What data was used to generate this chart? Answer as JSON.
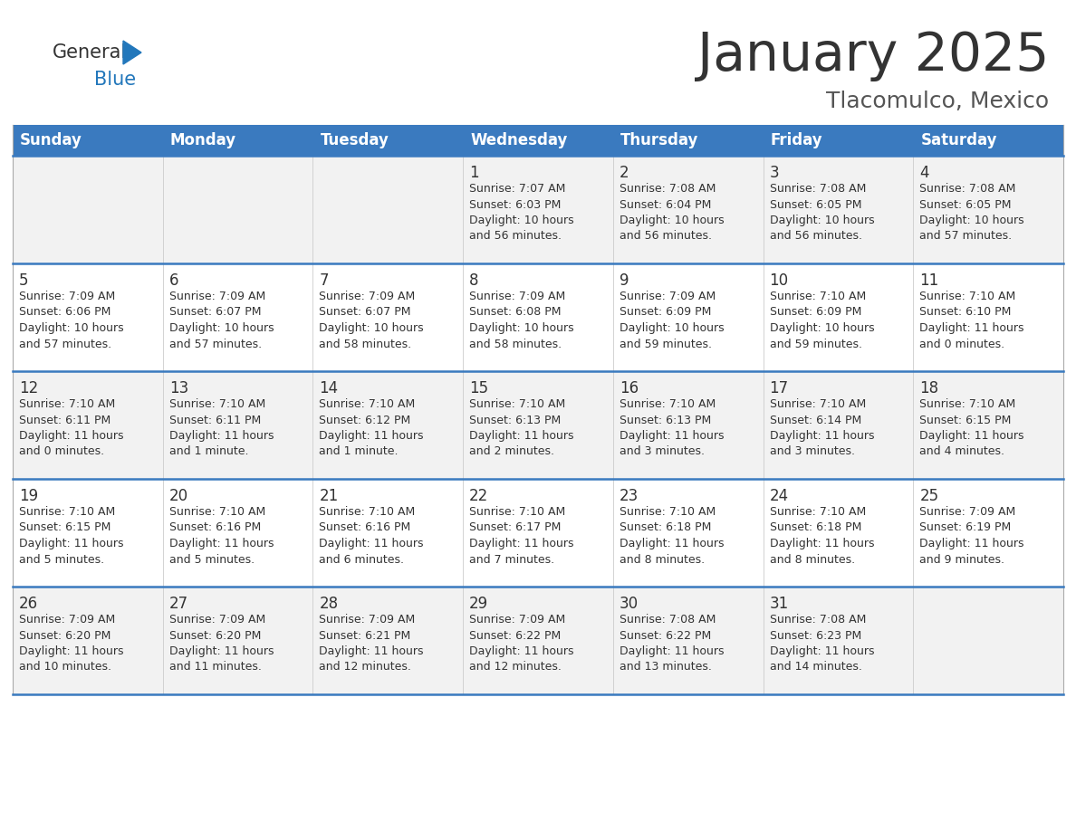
{
  "title": "January 2025",
  "subtitle": "Tlacomulco, Mexico",
  "header_bg": "#3a7abf",
  "header_text": "#ffffff",
  "row_bg": [
    "#f2f2f2",
    "#ffffff",
    "#f2f2f2",
    "#ffffff",
    "#f2f2f2"
  ],
  "border_color": "#3a7abf",
  "separator_color": "#cccccc",
  "days_of_week": [
    "Sunday",
    "Monday",
    "Tuesday",
    "Wednesday",
    "Thursday",
    "Friday",
    "Saturday"
  ],
  "cal_data": [
    [
      "",
      "",
      "",
      "1\nSunrise: 7:07 AM\nSunset: 6:03 PM\nDaylight: 10 hours\nand 56 minutes.",
      "2\nSunrise: 7:08 AM\nSunset: 6:04 PM\nDaylight: 10 hours\nand 56 minutes.",
      "3\nSunrise: 7:08 AM\nSunset: 6:05 PM\nDaylight: 10 hours\nand 56 minutes.",
      "4\nSunrise: 7:08 AM\nSunset: 6:05 PM\nDaylight: 10 hours\nand 57 minutes."
    ],
    [
      "5\nSunrise: 7:09 AM\nSunset: 6:06 PM\nDaylight: 10 hours\nand 57 minutes.",
      "6\nSunrise: 7:09 AM\nSunset: 6:07 PM\nDaylight: 10 hours\nand 57 minutes.",
      "7\nSunrise: 7:09 AM\nSunset: 6:07 PM\nDaylight: 10 hours\nand 58 minutes.",
      "8\nSunrise: 7:09 AM\nSunset: 6:08 PM\nDaylight: 10 hours\nand 58 minutes.",
      "9\nSunrise: 7:09 AM\nSunset: 6:09 PM\nDaylight: 10 hours\nand 59 minutes.",
      "10\nSunrise: 7:10 AM\nSunset: 6:09 PM\nDaylight: 10 hours\nand 59 minutes.",
      "11\nSunrise: 7:10 AM\nSunset: 6:10 PM\nDaylight: 11 hours\nand 0 minutes."
    ],
    [
      "12\nSunrise: 7:10 AM\nSunset: 6:11 PM\nDaylight: 11 hours\nand 0 minutes.",
      "13\nSunrise: 7:10 AM\nSunset: 6:11 PM\nDaylight: 11 hours\nand 1 minute.",
      "14\nSunrise: 7:10 AM\nSunset: 6:12 PM\nDaylight: 11 hours\nand 1 minute.",
      "15\nSunrise: 7:10 AM\nSunset: 6:13 PM\nDaylight: 11 hours\nand 2 minutes.",
      "16\nSunrise: 7:10 AM\nSunset: 6:13 PM\nDaylight: 11 hours\nand 3 minutes.",
      "17\nSunrise: 7:10 AM\nSunset: 6:14 PM\nDaylight: 11 hours\nand 3 minutes.",
      "18\nSunrise: 7:10 AM\nSunset: 6:15 PM\nDaylight: 11 hours\nand 4 minutes."
    ],
    [
      "19\nSunrise: 7:10 AM\nSunset: 6:15 PM\nDaylight: 11 hours\nand 5 minutes.",
      "20\nSunrise: 7:10 AM\nSunset: 6:16 PM\nDaylight: 11 hours\nand 5 minutes.",
      "21\nSunrise: 7:10 AM\nSunset: 6:16 PM\nDaylight: 11 hours\nand 6 minutes.",
      "22\nSunrise: 7:10 AM\nSunset: 6:17 PM\nDaylight: 11 hours\nand 7 minutes.",
      "23\nSunrise: 7:10 AM\nSunset: 6:18 PM\nDaylight: 11 hours\nand 8 minutes.",
      "24\nSunrise: 7:10 AM\nSunset: 6:18 PM\nDaylight: 11 hours\nand 8 minutes.",
      "25\nSunrise: 7:09 AM\nSunset: 6:19 PM\nDaylight: 11 hours\nand 9 minutes."
    ],
    [
      "26\nSunrise: 7:09 AM\nSunset: 6:20 PM\nDaylight: 11 hours\nand 10 minutes.",
      "27\nSunrise: 7:09 AM\nSunset: 6:20 PM\nDaylight: 11 hours\nand 11 minutes.",
      "28\nSunrise: 7:09 AM\nSunset: 6:21 PM\nDaylight: 11 hours\nand 12 minutes.",
      "29\nSunrise: 7:09 AM\nSunset: 6:22 PM\nDaylight: 11 hours\nand 12 minutes.",
      "30\nSunrise: 7:08 AM\nSunset: 6:22 PM\nDaylight: 11 hours\nand 13 minutes.",
      "31\nSunrise: 7:08 AM\nSunset: 6:23 PM\nDaylight: 11 hours\nand 14 minutes.",
      ""
    ]
  ],
  "logo_color_general": "#333333",
  "logo_color_blue": "#2277bb",
  "logo_triangle_color": "#2277bb",
  "title_color": "#333333",
  "subtitle_color": "#555555",
  "cell_text_color": "#333333",
  "title_fontsize": 42,
  "subtitle_fontsize": 18,
  "header_fontsize": 12,
  "day_num_fontsize": 12,
  "cell_fontsize": 9
}
